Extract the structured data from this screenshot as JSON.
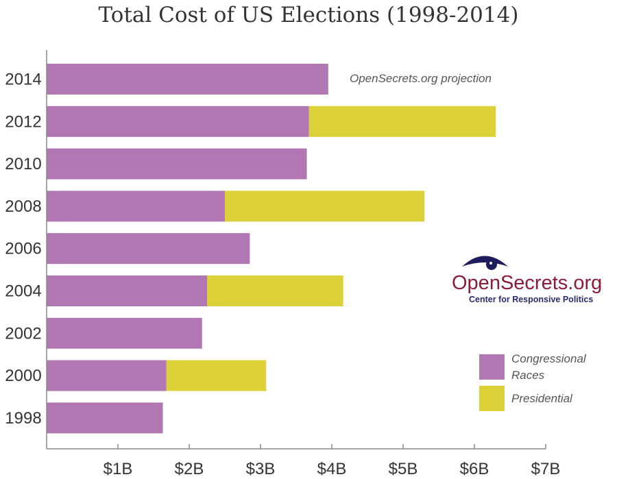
{
  "chart_data": {
    "type": "bar",
    "orientation": "horizontal",
    "stacked": true,
    "title": "Total Cost of US Elections (1998-2014)",
    "xlabel": "",
    "ylabel": "",
    "xlim": [
      0,
      7
    ],
    "x_ticks": [
      "$1B",
      "$2B",
      "$3B",
      "$4B",
      "$5B",
      "$6B",
      "$7B"
    ],
    "categories": [
      "2014",
      "2012",
      "2010",
      "2008",
      "2006",
      "2004",
      "2002",
      "2000",
      "1998"
    ],
    "series": [
      {
        "name": "Congressional Races",
        "color": "#b077b3",
        "values": [
          3.95,
          3.68,
          3.65,
          2.5,
          2.85,
          2.25,
          2.18,
          1.68,
          1.63
        ]
      },
      {
        "name": "Presidential",
        "color": "#dcd138",
        "values": [
          0,
          2.62,
          0,
          2.8,
          0,
          1.91,
          0,
          1.4,
          0
        ]
      }
    ],
    "legend": [
      {
        "line1": "Congressional",
        "line2": "Races"
      },
      {
        "line1": "Presidential",
        "line2": ""
      }
    ],
    "legend_position": "right",
    "annotation": "OpenSecrets.org projection"
  },
  "logo": {
    "name": "OpenSecrets.org",
    "tagline": "Center for Responsive Politics",
    "eye_color": "#1c1c5e",
    "text_color": "#8a1c3a"
  }
}
